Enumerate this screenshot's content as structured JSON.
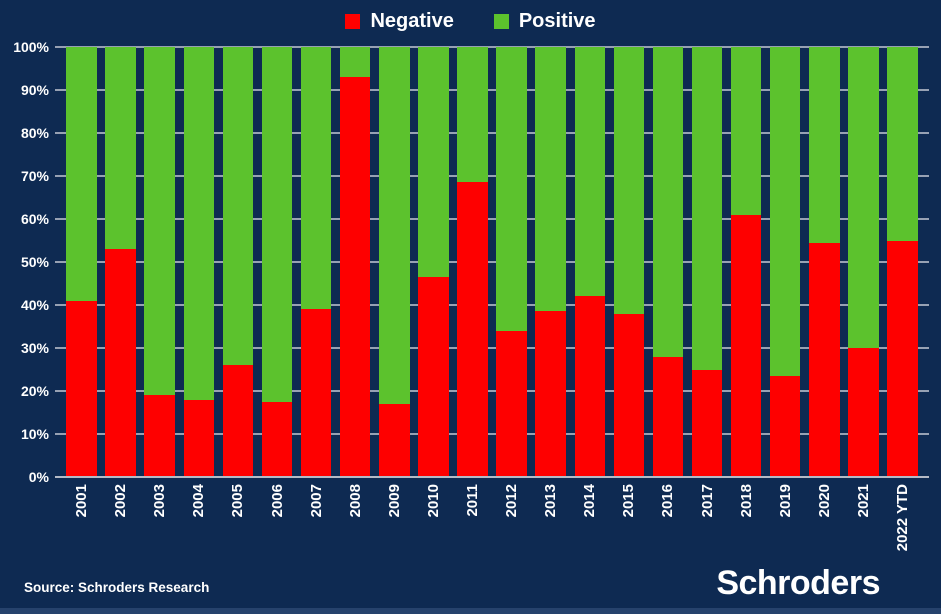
{
  "page": {
    "background_color": "#0e2a52",
    "footer_strip_color": "#26426c"
  },
  "legend": [
    {
      "label": "Negative",
      "color": "#fe0000"
    },
    {
      "label": "Positive",
      "color": "#5cc22d"
    }
  ],
  "chart_data": {
    "type": "bar",
    "stacked": true,
    "stacked_to_100_percent": true,
    "title": "",
    "xlabel": "",
    "ylabel": "",
    "ylim": [
      0,
      100
    ],
    "grid": true,
    "grid_color": "#97a1b3",
    "legend_position": "top",
    "y_ticks": [
      "100%",
      "90%",
      "80%",
      "70%",
      "60%",
      "50%",
      "40%",
      "30%",
      "20%",
      "10%",
      "0%"
    ],
    "categories": [
      "2001",
      "2002",
      "2003",
      "2004",
      "2005",
      "2006",
      "2007",
      "2008",
      "2009",
      "2010",
      "2011",
      "2012",
      "2013",
      "2014",
      "2015",
      "2016",
      "2017",
      "2018",
      "2019",
      "2020",
      "2021",
      "2022 YTD"
    ],
    "series": [
      {
        "name": "Negative",
        "color": "#fe0000",
        "values": [
          41,
          53,
          19,
          18,
          26,
          17.5,
          39,
          93,
          17,
          46.5,
          68.5,
          34,
          38.5,
          42,
          38,
          28,
          25,
          61,
          23.5,
          54.5,
          30,
          55
        ]
      },
      {
        "name": "Positive",
        "color": "#5cc22d",
        "values": [
          59,
          47,
          81,
          82,
          74,
          82.5,
          61,
          7,
          83,
          53.5,
          31.5,
          66,
          61.5,
          58,
          62,
          72,
          75,
          39,
          76.5,
          45.5,
          70,
          45
        ]
      }
    ]
  },
  "footer": {
    "source": "Source: Schroders Research",
    "brand": "Schroders"
  }
}
